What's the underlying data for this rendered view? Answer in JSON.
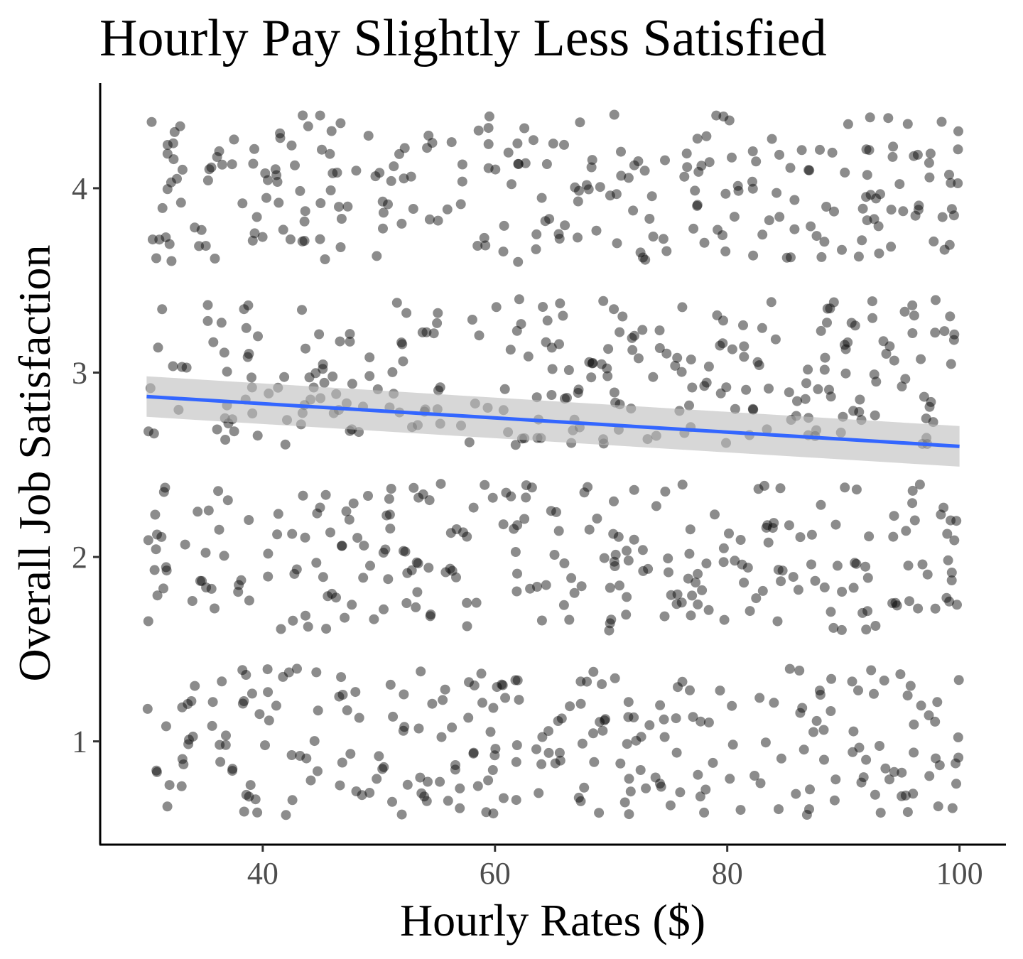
{
  "chart_data": {
    "type": "scatter",
    "title": "Hourly Pay Slightly Less Satisfied",
    "xlabel": "Hourly Rates ($)",
    "ylabel": "Overall Job Satisfaction",
    "xlim": [
      26,
      104
    ],
    "ylim": [
      0.44,
      4.57
    ],
    "x_ticks": [
      40,
      60,
      80,
      100
    ],
    "x_tick_labels": [
      "40",
      "60",
      "80",
      "100"
    ],
    "y_ticks": [
      1,
      2,
      3,
      4
    ],
    "y_tick_labels": [
      "1",
      "2",
      "3",
      "4"
    ],
    "grid": false,
    "legend": "none",
    "point_color": "#000000",
    "point_opacity": 0.45,
    "jitter": {
      "x_range": [
        30,
        100
      ],
      "levels": [
        1,
        2,
        3,
        4
      ],
      "spread": 0.4,
      "points_per_level": 260
    },
    "trend_line": {
      "method": "linear",
      "color": "#3366ff",
      "band_color": "#bdbdbd",
      "x": [
        30,
        100
      ],
      "y": [
        2.87,
        2.6
      ],
      "ci_lower": [
        2.76,
        2.49
      ],
      "ci_upper": [
        2.98,
        2.71
      ]
    }
  }
}
